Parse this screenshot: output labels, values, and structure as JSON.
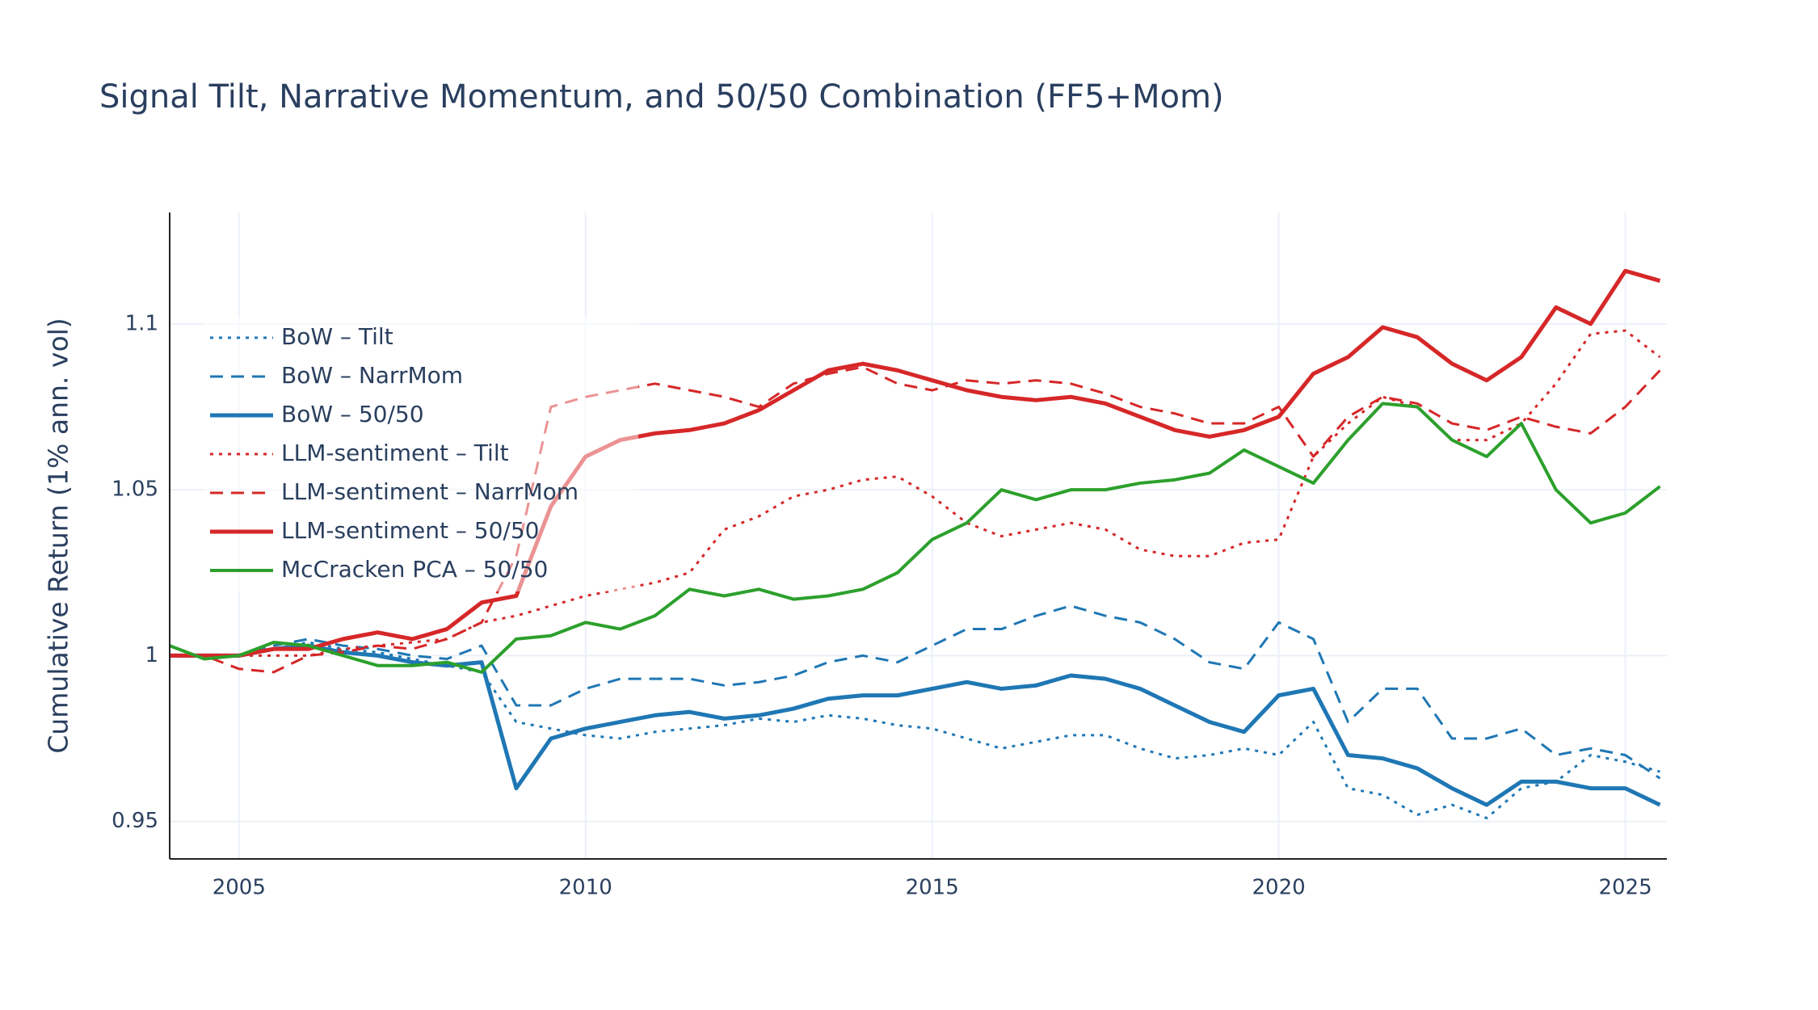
{
  "chart_data": {
    "type": "line",
    "title": "Signal Tilt, Narrative Momentum, and 50/50 Combination (FF5+Mom)",
    "y_label": "Cumulative Return (1% ann. vol)",
    "x": [
      2004.0,
      2004.5,
      2005.0,
      2005.5,
      2006.0,
      2006.5,
      2007.0,
      2007.5,
      2008.0,
      2008.5,
      2009.0,
      2009.5,
      2010.0,
      2010.5,
      2011.0,
      2011.5,
      2012.0,
      2012.5,
      2013.0,
      2013.5,
      2014.0,
      2014.5,
      2015.0,
      2015.5,
      2016.0,
      2016.5,
      2017.0,
      2017.5,
      2018.0,
      2018.5,
      2019.0,
      2019.5,
      2020.0,
      2020.5,
      2021.0,
      2021.5,
      2022.0,
      2022.5,
      2023.0,
      2023.5,
      2024.0,
      2024.5,
      2025.0,
      2025.5
    ],
    "series": [
      {
        "name": "BoW – Tilt",
        "color": "#1f77b4",
        "dash": "dot",
        "width": 3,
        "values": [
          1.0,
          1.0,
          1.0,
          1.002,
          1.004,
          1.002,
          1.001,
          0.999,
          0.997,
          0.995,
          0.98,
          0.978,
          0.976,
          0.975,
          0.977,
          0.978,
          0.979,
          0.981,
          0.98,
          0.982,
          0.981,
          0.979,
          0.978,
          0.975,
          0.972,
          0.974,
          0.976,
          0.976,
          0.972,
          0.969,
          0.97,
          0.972,
          0.97,
          0.98,
          0.96,
          0.958,
          0.952,
          0.955,
          0.951,
          0.96,
          0.962,
          0.97,
          0.968,
          0.965
        ]
      },
      {
        "name": "BoW – NarrMom",
        "color": "#1f77b4",
        "dash": "dash",
        "width": 3,
        "values": [
          1.0,
          1.0,
          1.0,
          1.003,
          1.005,
          1.003,
          1.002,
          1.0,
          0.999,
          1.003,
          0.985,
          0.985,
          0.99,
          0.993,
          0.993,
          0.993,
          0.991,
          0.992,
          0.994,
          0.998,
          1.0,
          0.998,
          1.003,
          1.008,
          1.008,
          1.012,
          1.015,
          1.012,
          1.01,
          1.005,
          0.998,
          0.996,
          1.01,
          1.005,
          0.98,
          0.99,
          0.99,
          0.975,
          0.975,
          0.978,
          0.97,
          0.972,
          0.97,
          0.963
        ]
      },
      {
        "name": "BoW – 50/50",
        "color": "#1f77b4",
        "dash": "solid",
        "width": 5,
        "values": [
          1.0,
          1.0,
          1.0,
          1.002,
          1.003,
          1.001,
          1.0,
          0.998,
          0.997,
          0.998,
          0.96,
          0.975,
          0.978,
          0.98,
          0.982,
          0.983,
          0.981,
          0.982,
          0.984,
          0.987,
          0.988,
          0.988,
          0.99,
          0.992,
          0.99,
          0.991,
          0.994,
          0.993,
          0.99,
          0.985,
          0.98,
          0.977,
          0.988,
          0.99,
          0.97,
          0.969,
          0.966,
          0.96,
          0.955,
          0.962,
          0.962,
          0.96,
          0.96,
          0.955
        ]
      },
      {
        "name": "LLM-sentiment – Tilt",
        "color": "#d62728",
        "dash": "dot",
        "width": 3,
        "values": [
          1.0,
          1.0,
          1.0,
          1.0,
          1.0,
          1.002,
          1.003,
          1.004,
          1.005,
          1.01,
          1.012,
          1.015,
          1.018,
          1.02,
          1.022,
          1.025,
          1.038,
          1.042,
          1.048,
          1.05,
          1.053,
          1.054,
          1.048,
          1.04,
          1.036,
          1.038,
          1.04,
          1.038,
          1.032,
          1.03,
          1.03,
          1.034,
          1.035,
          1.06,
          1.07,
          1.078,
          1.075,
          1.065,
          1.065,
          1.07,
          1.082,
          1.097,
          1.098,
          1.09
        ]
      },
      {
        "name": "LLM-sentiment – NarrMom",
        "color": "#d62728",
        "dash": "dash",
        "width": 3,
        "values": [
          1.0,
          1.0,
          0.996,
          0.995,
          1.0,
          1.001,
          1.003,
          1.002,
          1.005,
          1.01,
          1.03,
          1.075,
          1.078,
          1.08,
          1.082,
          1.08,
          1.078,
          1.075,
          1.082,
          1.085,
          1.087,
          1.082,
          1.08,
          1.083,
          1.082,
          1.083,
          1.082,
          1.079,
          1.075,
          1.073,
          1.07,
          1.07,
          1.075,
          1.06,
          1.072,
          1.078,
          1.076,
          1.07,
          1.068,
          1.072,
          1.069,
          1.067,
          1.075,
          1.086
        ]
      },
      {
        "name": "LLM-sentiment – 50/50",
        "color": "#d62728",
        "dash": "solid",
        "width": 5,
        "values": [
          1.0,
          1.0,
          1.0,
          1.002,
          1.002,
          1.005,
          1.007,
          1.005,
          1.008,
          1.016,
          1.018,
          1.045,
          1.06,
          1.065,
          1.067,
          1.068,
          1.07,
          1.074,
          1.08,
          1.086,
          1.088,
          1.086,
          1.083,
          1.08,
          1.078,
          1.077,
          1.078,
          1.076,
          1.072,
          1.068,
          1.066,
          1.068,
          1.072,
          1.085,
          1.09,
          1.099,
          1.096,
          1.088,
          1.083,
          1.09,
          1.105,
          1.1,
          1.116,
          1.113
        ]
      },
      {
        "name": "McCracken PCA – 50/50",
        "color": "#2ca02c",
        "dash": "solid",
        "width": 4,
        "values": [
          1.003,
          0.999,
          1.0,
          1.004,
          1.003,
          1.0,
          0.997,
          0.997,
          0.998,
          0.995,
          1.005,
          1.006,
          1.01,
          1.008,
          1.012,
          1.02,
          1.018,
          1.02,
          1.017,
          1.018,
          1.02,
          1.025,
          1.035,
          1.04,
          1.05,
          1.047,
          1.05,
          1.05,
          1.052,
          1.053,
          1.055,
          1.062,
          1.057,
          1.052,
          1.065,
          1.076,
          1.075,
          1.065,
          1.06,
          1.07,
          1.05,
          1.04,
          1.043,
          1.051
        ]
      }
    ],
    "xlim": [
      2004.0,
      2025.6
    ],
    "xticks": [
      2005,
      2010,
      2015,
      2020,
      2025
    ],
    "ylim": [
      0.9387,
      1.1336
    ],
    "yticks": [
      0.95,
      1,
      1.05,
      1.1
    ],
    "grid": true,
    "legend": "upper left"
  }
}
